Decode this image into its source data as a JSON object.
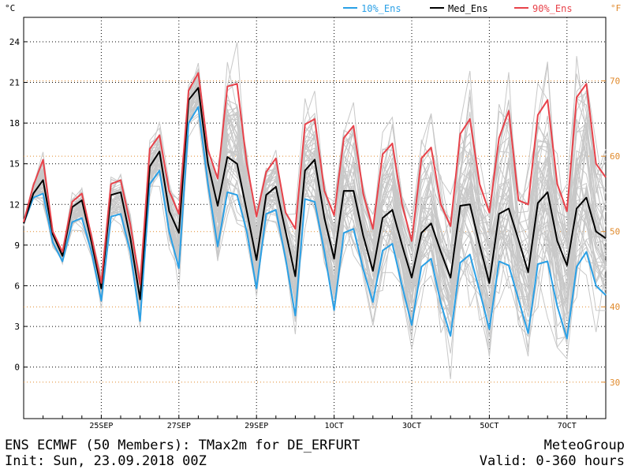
{
  "header": {
    "left_unit": "°C",
    "right_unit": "°F",
    "legend": [
      {
        "label": "10%_Ens",
        "color": "#2aa0e6"
      },
      {
        "label": "Med_Ens",
        "color": "#000000"
      },
      {
        "label": "90%_Ens",
        "color": "#e8424a"
      }
    ]
  },
  "footer": {
    "title": "ENS ECMWF (50 Members): TMax2m for DE_ERFURT",
    "init": "Init: Sun, 23.09.2018 00Z",
    "brand": "MeteoGroup",
    "valid": "Valid: 0-360 hours"
  },
  "chart_data": {
    "type": "line",
    "title": "ENS ECMWF (50 Members): TMax2m for DE_ERFURT",
    "ylabel": "°C",
    "y2label": "°F",
    "ylim": [
      -3.8,
      25.8
    ],
    "yticks": [
      0,
      3,
      6,
      9,
      12,
      15,
      18,
      21,
      24
    ],
    "y2ticks": [
      30,
      40,
      50,
      60,
      70
    ],
    "xlim": [
      0,
      360
    ],
    "x_unit": "hours",
    "xticks": [
      {
        "x": 48,
        "label": "25SEP"
      },
      {
        "x": 96,
        "label": "27SEP"
      },
      {
        "x": 144,
        "label": "29SEP"
      },
      {
        "x": 192,
        "label": "1OCT"
      },
      {
        "x": 240,
        "label": "3OCT"
      },
      {
        "x": 288,
        "label": "5OCT"
      },
      {
        "x": 336,
        "label": "7OCT"
      }
    ],
    "grid": true,
    "x": [
      0,
      6,
      12,
      18,
      24,
      30,
      36,
      42,
      48,
      54,
      60,
      66,
      72,
      78,
      84,
      90,
      96,
      102,
      108,
      114,
      120,
      126,
      132,
      138,
      144,
      150,
      156,
      162,
      168,
      174,
      180,
      186,
      192,
      198,
      204,
      210,
      216,
      222,
      228,
      234,
      240,
      246,
      252,
      258,
      264,
      270,
      276,
      282,
      288,
      294,
      300,
      306,
      312,
      318,
      324,
      330,
      336,
      342,
      348,
      354,
      360
    ],
    "series": [
      {
        "name": "10%_Ens",
        "color": "#2aa0e6",
        "values": [
          10.6,
          12.5,
          12.8,
          9.2,
          7.8,
          10.7,
          11.0,
          8.5,
          4.9,
          11.1,
          11.3,
          8.5,
          3.4,
          13.5,
          14.5,
          10.0,
          7.3,
          18.0,
          19.2,
          13.5,
          8.9,
          12.9,
          12.7,
          10.0,
          5.8,
          11.3,
          11.6,
          8.0,
          3.8,
          12.4,
          12.2,
          8.5,
          4.2,
          9.9,
          10.2,
          7.2,
          4.8,
          8.6,
          9.1,
          6.0,
          3.1,
          7.4,
          8.0,
          4.7,
          2.3,
          7.7,
          8.3,
          5.6,
          2.8,
          7.8,
          7.5,
          5.0,
          2.5,
          7.6,
          7.8,
          4.5,
          2.1,
          7.4,
          8.5,
          6.0,
          5.3
        ]
      },
      {
        "name": "Med_Ens",
        "color": "#000000",
        "values": [
          10.6,
          12.8,
          13.8,
          9.8,
          8.2,
          11.8,
          12.3,
          9.2,
          5.8,
          12.7,
          12.9,
          9.5,
          5.0,
          14.8,
          15.9,
          11.5,
          9.9,
          19.7,
          20.6,
          15.0,
          11.9,
          15.5,
          15.0,
          11.5,
          7.9,
          12.7,
          13.3,
          10.0,
          6.7,
          14.5,
          15.3,
          11.0,
          8.0,
          13.0,
          13.0,
          9.7,
          7.1,
          11.0,
          11.6,
          9.0,
          6.6,
          9.9,
          10.6,
          8.5,
          6.6,
          11.9,
          12.0,
          9.0,
          6.2,
          11.3,
          11.7,
          9.4,
          7.0,
          12.1,
          12.9,
          9.3,
          7.5,
          11.7,
          12.5,
          10.0,
          9.5
        ]
      },
      {
        "name": "90%_Ens",
        "color": "#e8424a",
        "values": [
          10.7,
          13.4,
          15.3,
          10.0,
          8.5,
          12.2,
          12.8,
          9.6,
          6.2,
          13.5,
          13.8,
          10.5,
          6.1,
          16.1,
          17.1,
          13.0,
          11.3,
          20.4,
          21.7,
          16.0,
          13.9,
          20.7,
          20.9,
          15.0,
          11.1,
          14.4,
          15.4,
          11.4,
          10.2,
          17.9,
          18.3,
          13.0,
          11.2,
          16.9,
          17.8,
          12.8,
          10.2,
          15.7,
          16.5,
          12.0,
          9.3,
          15.4,
          16.2,
          12.0,
          10.4,
          17.2,
          18.3,
          13.5,
          11.4,
          16.9,
          18.9,
          12.3,
          12.0,
          18.6,
          19.7,
          13.5,
          11.5,
          19.9,
          20.9,
          15.0,
          14.0
        ]
      }
    ],
    "spread": {
      "name": "ensemble members",
      "count": 50,
      "color": "#c8c8c8"
    }
  }
}
